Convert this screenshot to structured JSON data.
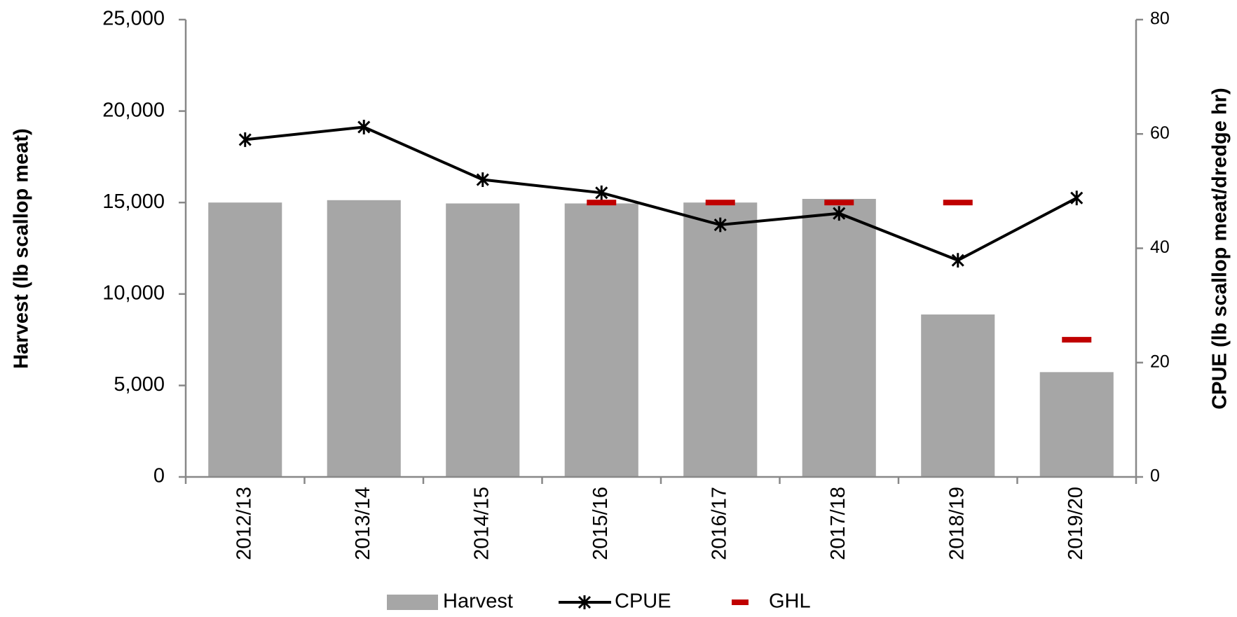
{
  "chart_data": {
    "type": "bar",
    "categories": [
      "2012/13",
      "2013/14",
      "2014/15",
      "2015/16",
      "2016/17",
      "2017/18",
      "2018/19",
      "2019/20"
    ],
    "series": [
      {
        "name": "Harvest",
        "type": "bar",
        "color": "#a6a6a6",
        "values": [
          15000,
          15130,
          14950,
          14950,
          15000,
          15200,
          8880,
          5730
        ]
      },
      {
        "name": "CPUE",
        "type": "line",
        "axis": "y2",
        "color": "#000000",
        "values": [
          59,
          61.2,
          52,
          49.7,
          44.1,
          46.1,
          37.9,
          48.8
        ]
      },
      {
        "name": "GHL",
        "type": "dash",
        "color": "#c00000",
        "values": [
          null,
          null,
          null,
          15000,
          15000,
          15000,
          15000,
          7500
        ]
      }
    ],
    "y_label": "Harvest (lb scallop meat)",
    "y2_label": "CPUE  (lb scallop meat/dredge hr)",
    "ylim": [
      0,
      25000
    ],
    "yticks": [
      {
        "value": 0,
        "label": "0"
      },
      {
        "value": 5000,
        "label": "5,000"
      },
      {
        "value": 10000,
        "label": "10,000"
      },
      {
        "value": 15000,
        "label": "15,000"
      },
      {
        "value": 20000,
        "label": "20,000"
      },
      {
        "value": 25000,
        "label": "25,000"
      }
    ],
    "y2lim": [
      0,
      80
    ],
    "y2ticks": [
      0,
      20,
      40,
      60,
      80
    ],
    "grid": false,
    "legend": "bottom"
  }
}
